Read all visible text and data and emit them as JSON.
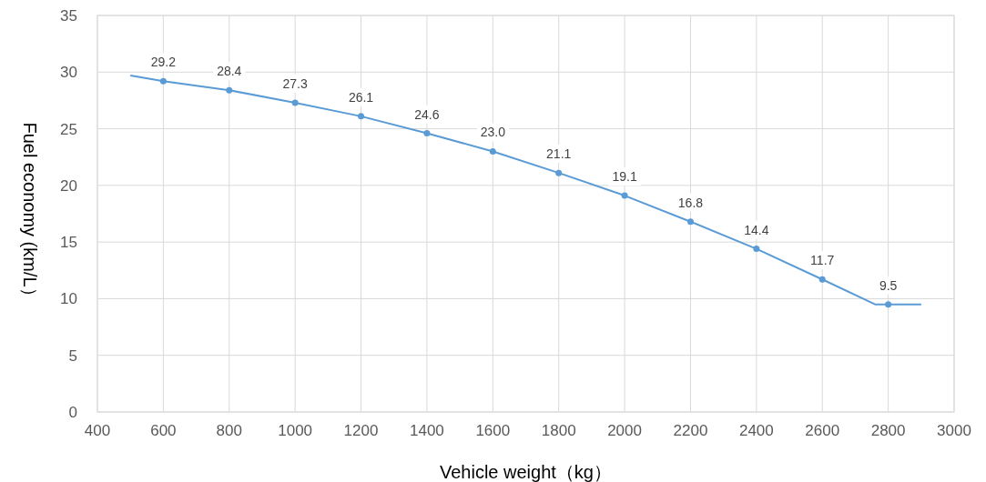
{
  "chart_data": {
    "type": "line",
    "xlabel": "Vehicle weight（kg）",
    "ylabel": "Fuel economy (km/L）",
    "xlim": [
      400,
      3000
    ],
    "xticks": [
      400,
      600,
      800,
      1000,
      1200,
      1400,
      1600,
      1800,
      2000,
      2200,
      2400,
      2600,
      2800,
      3000
    ],
    "ylim": [
      0,
      35
    ],
    "yticks": [
      0,
      5,
      10,
      15,
      20,
      25,
      30,
      35
    ],
    "grid": true,
    "series": [
      {
        "type": "line",
        "color": "#5b9bd5",
        "marker": "none",
        "x": [
          500,
          600,
          800,
          1000,
          1200,
          1400,
          1600,
          1800,
          2000,
          2200,
          2400,
          2600,
          2760,
          2900
        ],
        "values": [
          29.7,
          29.2,
          28.4,
          27.3,
          26.1,
          24.6,
          23.0,
          21.1,
          19.1,
          16.8,
          14.4,
          11.7,
          9.5,
          9.5
        ]
      },
      {
        "type": "scatter",
        "color": "#5b9bd5",
        "marker": "circle",
        "value_labels": [
          "29.2",
          "28.4",
          "27.3",
          "26.1",
          "24.6",
          "23.0",
          "21.1",
          "19.1",
          "16.8",
          "14.4",
          "11.7",
          "9.5"
        ],
        "x": [
          600,
          800,
          1000,
          1200,
          1400,
          1600,
          1800,
          2000,
          2200,
          2400,
          2600,
          2800
        ],
        "values": [
          29.2,
          28.4,
          27.3,
          26.1,
          24.6,
          23.0,
          21.1,
          19.1,
          16.8,
          14.4,
          11.7,
          9.5
        ]
      }
    ]
  }
}
